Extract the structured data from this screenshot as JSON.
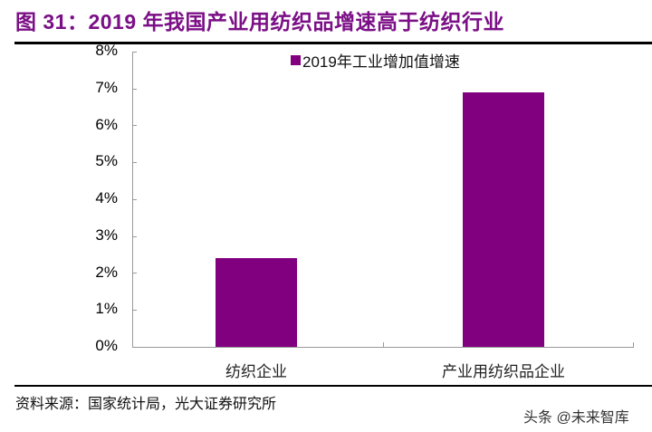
{
  "header": {
    "title": "图 31：2019 年我国产业用纺织品增速高于纺织行业"
  },
  "chart_data": {
    "type": "bar",
    "title": "图 31：2019 年我国产业用纺织品增速高于纺织行业",
    "categories": [
      "纺织企业",
      "产业用纺织品企业"
    ],
    "series": [
      {
        "name": "2019年工业增加值增速",
        "values": [
          2.4,
          6.9
        ],
        "color": "#800080"
      }
    ],
    "xlabel": "",
    "ylabel": "",
    "ylim": [
      0,
      8
    ],
    "yticks": [
      "0%",
      "1%",
      "2%",
      "3%",
      "4%",
      "5%",
      "6%",
      "7%",
      "8%"
    ],
    "grid": false,
    "legend_position": "top-center"
  },
  "legend": {
    "label": "2019年工业增加值增速"
  },
  "yaxis": {
    "ticks": [
      "0%",
      "1%",
      "2%",
      "3%",
      "4%",
      "5%",
      "6%",
      "7%",
      "8%"
    ]
  },
  "xaxis": {
    "labels": [
      "纺织企业",
      "产业用纺织品企业"
    ]
  },
  "footer": {
    "source": "资料来源：国家统计局，光大证券研究所",
    "watermark": "头条 @未来智库"
  }
}
